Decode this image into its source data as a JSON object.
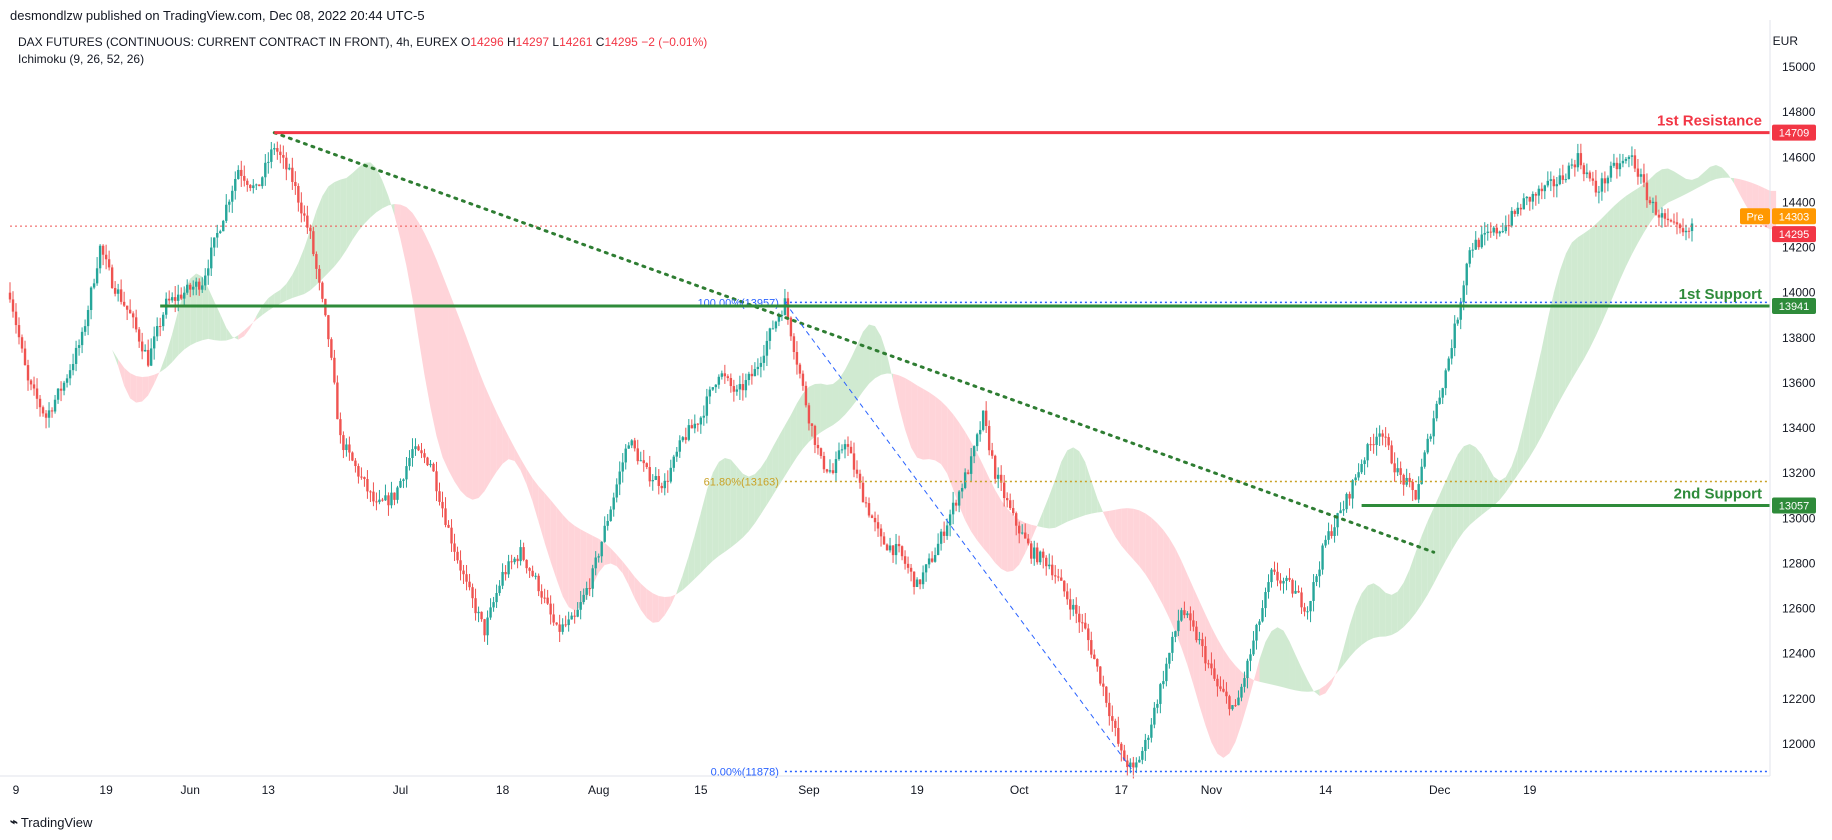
{
  "publisher": "desmondlzw published on TradingView.com, Dec 08, 2022 20:44 UTC-5",
  "brand": "TradingView",
  "legend": {
    "symbol": "DAX FUTURES (CONTINUOUS: CURRENT CONTRACT IN FRONT), 4h, EUREX",
    "o_label": "O",
    "o": "14296",
    "h_label": "H",
    "h": "14297",
    "l_label": "L",
    "l": "14261",
    "c_label": "C",
    "c": "14295",
    "change": "−2 (−0.01%)"
  },
  "indicator": "Ichimoku (9, 26, 52, 26)",
  "currency": "EUR",
  "colors": {
    "resistance": "#f23645",
    "support": "#2e8b3a",
    "up": "#26a69a",
    "down": "#ef5350",
    "cloud_green": "#c8e6c9",
    "cloud_red": "#ffcdd2",
    "premarket": "#ff9800",
    "fib_blue": "#2962ff",
    "fib_gold": "#c9a227"
  },
  "chart_data": {
    "type": "candlestick",
    "ylim": [
      11800,
      15100
    ],
    "y_ticks": [
      12000,
      12200,
      12400,
      12600,
      12800,
      13000,
      13200,
      13400,
      13600,
      13800,
      14000,
      14200,
      14400,
      14600,
      14800,
      15000
    ],
    "x_ticks": [
      "9",
      "19",
      "Jun",
      "13",
      "Jul",
      "18",
      "Aug",
      "15",
      "Sep",
      "19",
      "Oct",
      "17",
      "Nov",
      "14",
      "Dec",
      "19"
    ],
    "levels": [
      {
        "name": "1st Resistance",
        "value": 14709,
        "color": "#f23645"
      },
      {
        "name": "1st Support",
        "value": 13941,
        "color": "#2e8b3a"
      },
      {
        "name": "2nd Support",
        "value": 13057,
        "color": "#2e8b3a"
      }
    ],
    "fibonacci": [
      {
        "label": "100.00%(13957)",
        "value": 13957,
        "color": "#2962ff"
      },
      {
        "label": "61.80%(13163)",
        "value": 13163,
        "color": "#c9a227"
      },
      {
        "label": "0.00%(11878)",
        "value": 11878,
        "color": "#2962ff"
      }
    ],
    "price_badges": [
      {
        "label": "Pre",
        "value": "14303",
        "color": "#ff9800"
      },
      {
        "label": "",
        "value": "14295",
        "color": "#f23645"
      }
    ],
    "last_price": 14295,
    "path_points": [
      [
        0,
        14000
      ],
      [
        6,
        13600
      ],
      [
        12,
        13450
      ],
      [
        18,
        13600
      ],
      [
        24,
        13800
      ],
      [
        30,
        14200
      ],
      [
        34,
        14050
      ],
      [
        40,
        13900
      ],
      [
        46,
        13700
      ],
      [
        52,
        13950
      ],
      [
        58,
        14000
      ],
      [
        64,
        14050
      ],
      [
        70,
        14300
      ],
      [
        76,
        14550
      ],
      [
        82,
        14450
      ],
      [
        88,
        14650
      ],
      [
        94,
        14500
      ],
      [
        100,
        14250
      ],
      [
        106,
        13800
      ],
      [
        110,
        13350
      ],
      [
        116,
        13200
      ],
      [
        122,
        13050
      ],
      [
        128,
        13100
      ],
      [
        134,
        13300
      ],
      [
        140,
        13250
      ],
      [
        146,
        12950
      ],
      [
        152,
        12700
      ],
      [
        158,
        12500
      ],
      [
        164,
        12750
      ],
      [
        170,
        12850
      ],
      [
        176,
        12700
      ],
      [
        182,
        12500
      ],
      [
        188,
        12550
      ],
      [
        194,
        12750
      ],
      [
        200,
        13050
      ],
      [
        206,
        13350
      ],
      [
        212,
        13200
      ],
      [
        218,
        13150
      ],
      [
        224,
        13350
      ],
      [
        230,
        13450
      ],
      [
        236,
        13650
      ],
      [
        242,
        13550
      ],
      [
        248,
        13650
      ],
      [
        254,
        13850
      ],
      [
        258,
        13957
      ],
      [
        262,
        13700
      ],
      [
        266,
        13450
      ],
      [
        270,
        13250
      ],
      [
        274,
        13200
      ],
      [
        278,
        13350
      ],
      [
        284,
        13100
      ],
      [
        290,
        12900
      ],
      [
        296,
        12850
      ],
      [
        302,
        12700
      ],
      [
        308,
        12850
      ],
      [
        314,
        13050
      ],
      [
        320,
        13250
      ],
      [
        324,
        13450
      ],
      [
        328,
        13200
      ],
      [
        334,
        13000
      ],
      [
        340,
        12850
      ],
      [
        346,
        12800
      ],
      [
        352,
        12650
      ],
      [
        358,
        12500
      ],
      [
        364,
        12250
      ],
      [
        370,
        11950
      ],
      [
        374,
        11878
      ],
      [
        378,
        12000
      ],
      [
        384,
        12300
      ],
      [
        390,
        12600
      ],
      [
        396,
        12450
      ],
      [
        402,
        12250
      ],
      [
        408,
        12150
      ],
      [
        414,
        12450
      ],
      [
        420,
        12750
      ],
      [
        426,
        12700
      ],
      [
        432,
        12600
      ],
      [
        438,
        12900
      ],
      [
        444,
        13050
      ],
      [
        450,
        13250
      ],
      [
        456,
        13400
      ],
      [
        462,
        13200
      ],
      [
        468,
        13100
      ],
      [
        474,
        13450
      ],
      [
        478,
        13650
      ],
      [
        482,
        13900
      ],
      [
        486,
        14200
      ],
      [
        492,
        14250
      ],
      [
        498,
        14300
      ],
      [
        504,
        14400
      ],
      [
        510,
        14450
      ],
      [
        516,
        14500
      ],
      [
        522,
        14600
      ],
      [
        528,
        14450
      ],
      [
        534,
        14550
      ],
      [
        540,
        14600
      ],
      [
        546,
        14400
      ],
      [
        552,
        14300
      ],
      [
        558,
        14250
      ],
      [
        560,
        14295
      ]
    ]
  }
}
